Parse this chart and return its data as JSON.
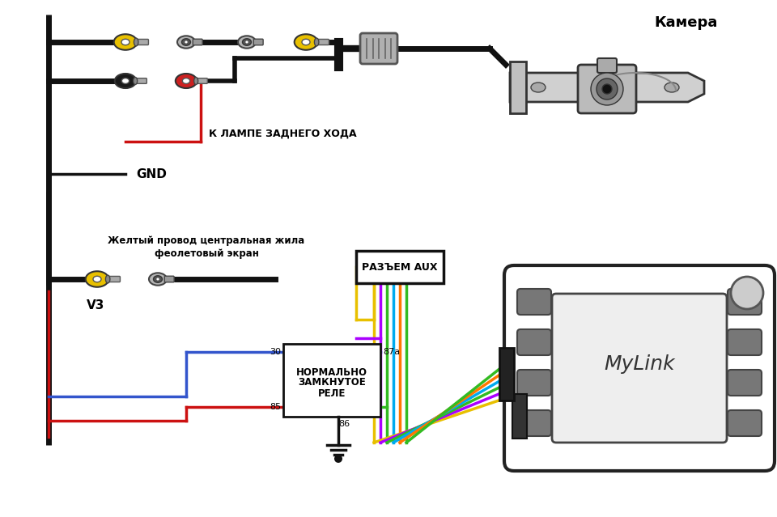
{
  "bg_color": "#ffffff",
  "title_camera": "Камера",
  "label_gnd": "GND",
  "label_lamp": "К ЛАМПЕ ЗАДНЕГО ХОДА",
  "label_v3": "V3",
  "label_yellow_wire": "Желтый провод центральная жила",
  "label_violet_screen": "феолетовый экран",
  "label_aux": "РАЗЪЕМ AUX",
  "label_relay1": "НОРМАЛЬНО",
  "label_relay2": "ЗАМКНУТОЕ",
  "label_relay3": "РЕЛЕ",
  "label_mylink": "MyLink",
  "relay_30": "30",
  "relay_85": "85",
  "relay_87a": "87a",
  "relay_86": "86"
}
